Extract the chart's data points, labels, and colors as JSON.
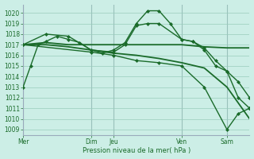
{
  "bg_color": "#cceee6",
  "grid_color": "#99ccbb",
  "line_color": "#1a6b2a",
  "sep_color": "#99aabb",
  "xlabel": "Pression niveau de la mer( hPa )",
  "ylim": [
    1008.5,
    1020.8
  ],
  "yticks": [
    1009,
    1010,
    1011,
    1012,
    1013,
    1014,
    1015,
    1016,
    1017,
    1018,
    1019,
    1020
  ],
  "day_labels": [
    "Mer",
    "Dim",
    "Jeu",
    "Ven",
    "Sam"
  ],
  "day_positions": [
    0,
    36,
    48,
    84,
    108
  ],
  "xlim": [
    0,
    120
  ],
  "series": [
    {
      "x": [
        0,
        4,
        8,
        12,
        18,
        24,
        30,
        36,
        42,
        48,
        54,
        60,
        66,
        72,
        78,
        84,
        90,
        96,
        102,
        108,
        114,
        120
      ],
      "y": [
        1013,
        1015,
        1017,
        1017.3,
        1017.8,
        1017.5,
        1017.2,
        1016.5,
        1016.2,
        1016.5,
        1017.2,
        1019.0,
        1020.2,
        1020.2,
        1019.0,
        1017.5,
        1017.3,
        1016.7,
        1015.5,
        1014.5,
        1012.0,
        1011.0
      ],
      "marker": "D",
      "markersize": 2.0,
      "linewidth": 1.0
    },
    {
      "x": [
        0,
        12,
        24,
        36,
        48,
        60,
        72,
        84,
        96,
        108,
        120
      ],
      "y": [
        1017.0,
        1017.2,
        1017.0,
        1017.0,
        1017.0,
        1017.0,
        1017.0,
        1017.0,
        1016.8,
        1016.7,
        1016.7
      ],
      "marker": null,
      "markersize": 0,
      "linewidth": 1.3
    },
    {
      "x": [
        0,
        12,
        24,
        36,
        48,
        60,
        72,
        84,
        96,
        108,
        120
      ],
      "y": [
        1017.0,
        1017.0,
        1016.8,
        1016.5,
        1016.2,
        1016.0,
        1015.7,
        1015.3,
        1014.8,
        1013.0,
        1010.0
      ],
      "marker": null,
      "markersize": 0,
      "linewidth": 1.3
    },
    {
      "x": [
        0,
        12,
        24,
        36,
        48,
        54,
        60,
        66,
        72,
        84,
        90,
        96,
        102,
        108,
        114,
        120
      ],
      "y": [
        1017.0,
        1018.0,
        1017.8,
        1016.5,
        1016.3,
        1017.0,
        1018.8,
        1019.0,
        1019.0,
        1017.5,
        1017.3,
        1016.5,
        1015.0,
        1014.5,
        1013.5,
        1012.0
      ],
      "marker": "D",
      "markersize": 2.0,
      "linewidth": 1.0
    },
    {
      "x": [
        0,
        36,
        48,
        60,
        72,
        84,
        96,
        108,
        114,
        120
      ],
      "y": [
        1017.0,
        1016.3,
        1016.0,
        1015.5,
        1015.3,
        1015.0,
        1013.0,
        1009.0,
        1010.5,
        1011.0
      ],
      "marker": "D",
      "markersize": 2.0,
      "linewidth": 1.0
    }
  ]
}
